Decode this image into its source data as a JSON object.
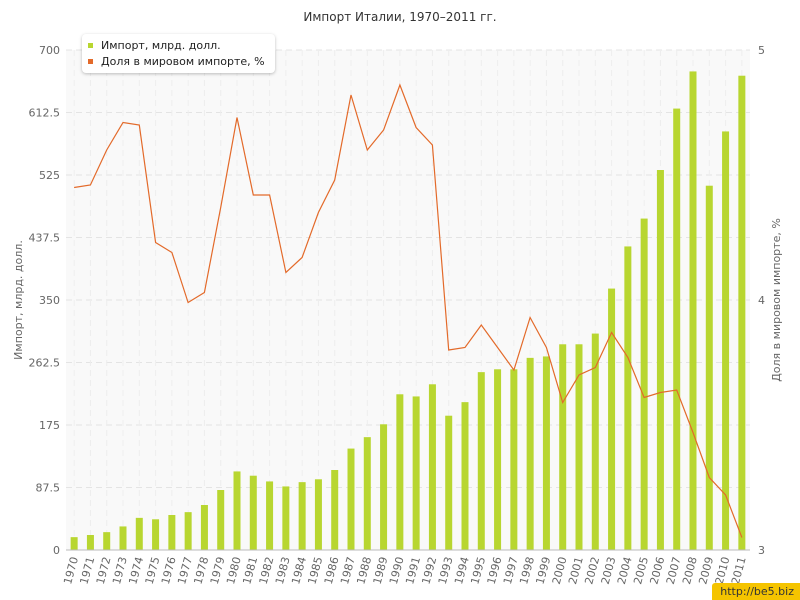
{
  "chart_data": {
    "type": "bar+line",
    "title": "Импорт Италии, 1970–2011 гг.",
    "ylabel_left": "Импорт, млрд. долл.",
    "ylabel_right": "Доля в мировом импорте, %",
    "ylim_left": [
      0,
      700
    ],
    "ylim_right": [
      3,
      5
    ],
    "yticks_left": [
      "0",
      "87.5",
      "175",
      "262.5",
      "350",
      "437.5",
      "525",
      "612.5",
      "700"
    ],
    "yticks_right": [
      "3",
      "4",
      "5"
    ],
    "categories": [
      "1970",
      "1971",
      "1972",
      "1973",
      "1974",
      "1975",
      "1976",
      "1977",
      "1978",
      "1979",
      "1980",
      "1981",
      "1982",
      "1983",
      "1984",
      "1985",
      "1986",
      "1987",
      "1988",
      "1989",
      "1990",
      "1991",
      "1992",
      "1993",
      "1994",
      "1995",
      "1996",
      "1997",
      "1998",
      "1999",
      "2000",
      "2001",
      "2002",
      "2003",
      "2004",
      "2005",
      "2006",
      "2007",
      "2008",
      "2009",
      "2010",
      "2011"
    ],
    "series": [
      {
        "name": "Импорт, млрд. долл.",
        "axis": "left",
        "kind": "bar",
        "color": "#b8d630",
        "values": [
          18,
          21,
          25,
          33,
          45,
          43,
          49,
          53,
          63,
          84,
          110,
          104,
          96,
          89,
          95,
          99,
          112,
          142,
          158,
          176,
          218,
          215,
          232,
          188,
          207,
          249,
          253,
          253,
          269,
          271,
          288,
          288,
          303,
          366,
          425,
          464,
          532,
          618,
          670,
          510,
          586,
          664
        ]
      },
      {
        "name": "Доля в мировом импорте, %",
        "axis": "right",
        "kind": "line",
        "color": "#e36a2a",
        "values": [
          4.45,
          4.46,
          4.6,
          4.71,
          4.7,
          4.23,
          4.19,
          3.99,
          4.03,
          4.37,
          4.73,
          4.42,
          4.42,
          4.11,
          4.17,
          4.35,
          4.48,
          4.82,
          4.6,
          4.68,
          4.86,
          4.69,
          4.62,
          3.8,
          3.81,
          3.9,
          3.81,
          3.72,
          3.93,
          3.81,
          3.59,
          3.7,
          3.73,
          3.87,
          3.77,
          3.61,
          3.63,
          3.64,
          3.47,
          3.29,
          3.22,
          3.05
        ]
      }
    ],
    "grid": true,
    "legend_position": "top-left"
  },
  "colors": {
    "bar": "#b8d630",
    "line": "#e36a2a",
    "grid": "#e4e4e4",
    "plot_bg": "#f9f9f9"
  },
  "watermark": "http://be5.biz"
}
